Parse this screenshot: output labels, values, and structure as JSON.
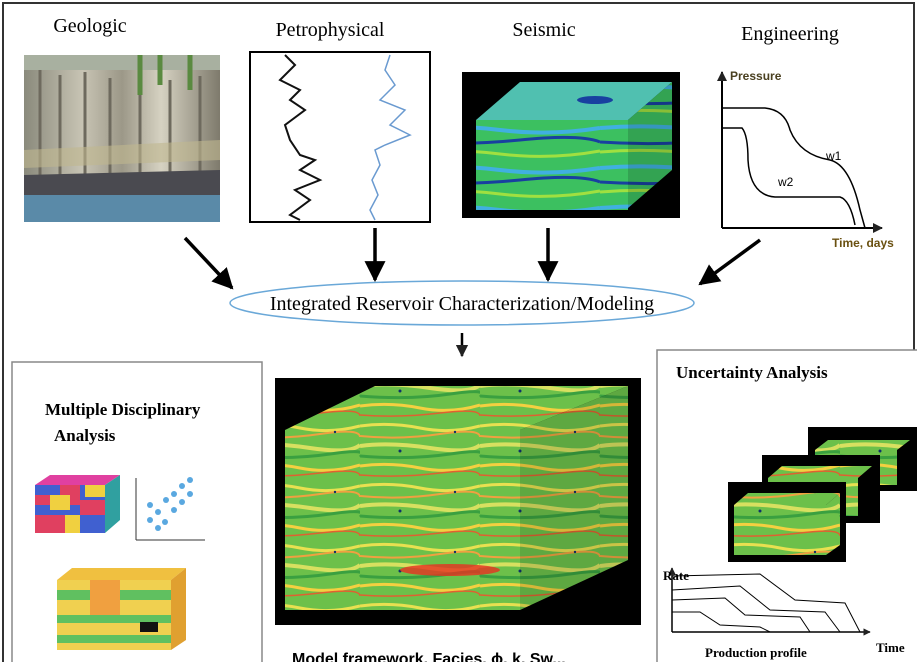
{
  "sources": [
    {
      "label": "Geologic"
    },
    {
      "label": "Petrophysical"
    },
    {
      "label": "Seismic"
    },
    {
      "label": "Engineering",
      "y_axis": "Pressure",
      "x_axis": "Time, days",
      "curves": [
        "w1",
        "w2"
      ]
    }
  ],
  "hub": {
    "label": "Integrated Reservoir Characterization/Modeling"
  },
  "outputs": {
    "multidisciplinary": {
      "title_lines": [
        "Multiple Disciplinary",
        "Analysis"
      ]
    },
    "model": {
      "caption": "Model framework, Facies, ϕ, k, Sw..."
    },
    "uncertainty": {
      "title": "Uncertainty Analysis",
      "y_axis": "Rate",
      "x_axis": "Time",
      "caption": "Production profile"
    }
  }
}
